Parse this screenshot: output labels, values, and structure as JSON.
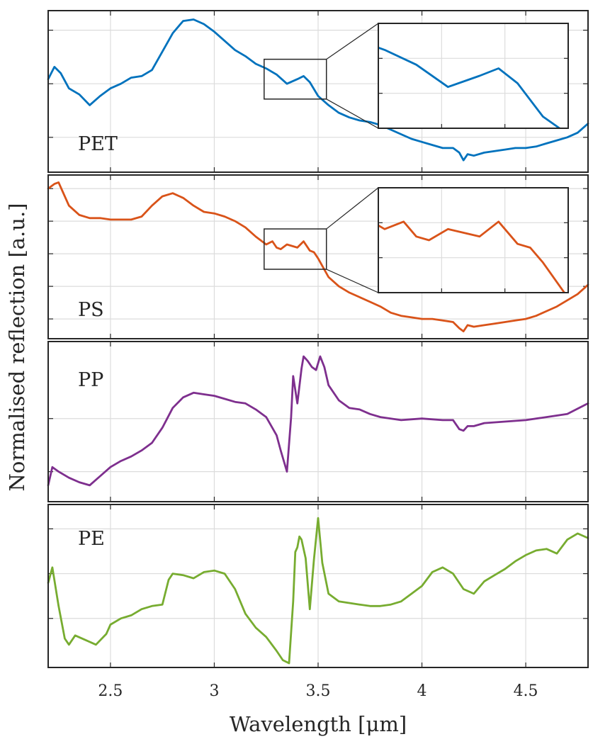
{
  "chart_data": {
    "type": "line",
    "xlabel": "Wavelength [μm]",
    "ylabel": "Normalised reflection [a.u.]",
    "xlim": [
      2.2,
      4.8
    ],
    "x_ticks": [
      "2.5",
      "3",
      "3.5",
      "4",
      "4.5"
    ],
    "x_tick_values": [
      2.5,
      3.0,
      3.5,
      4.0,
      4.5
    ],
    "grid": true,
    "panels": [
      {
        "name": "PET",
        "color": "#0072BD",
        "ylim": [
          0,
          1
        ],
        "y_tick_values": [
          0.2,
          0.55,
          0.9
        ],
        "x": [
          2.2,
          2.23,
          2.26,
          2.3,
          2.35,
          2.4,
          2.45,
          2.5,
          2.55,
          2.6,
          2.65,
          2.7,
          2.75,
          2.8,
          2.85,
          2.9,
          2.95,
          3.0,
          3.05,
          3.1,
          3.15,
          3.2,
          3.25,
          3.3,
          3.35,
          3.4,
          3.43,
          3.46,
          3.5,
          3.55,
          3.6,
          3.65,
          3.7,
          3.75,
          3.8,
          3.85,
          3.9,
          3.95,
          4.0,
          4.05,
          4.1,
          4.15,
          4.18,
          4.2,
          4.22,
          4.25,
          4.3,
          4.35,
          4.4,
          4.45,
          4.5,
          4.55,
          4.6,
          4.65,
          4.7,
          4.75,
          4.8
        ],
        "y": [
          0.58,
          0.66,
          0.62,
          0.52,
          0.48,
          0.41,
          0.47,
          0.52,
          0.55,
          0.59,
          0.6,
          0.64,
          0.76,
          0.88,
          0.96,
          0.97,
          0.94,
          0.89,
          0.83,
          0.77,
          0.73,
          0.68,
          0.65,
          0.61,
          0.55,
          0.58,
          0.6,
          0.56,
          0.47,
          0.41,
          0.36,
          0.33,
          0.31,
          0.3,
          0.28,
          0.25,
          0.22,
          0.19,
          0.17,
          0.15,
          0.13,
          0.13,
          0.1,
          0.05,
          0.09,
          0.08,
          0.1,
          0.11,
          0.12,
          0.13,
          0.13,
          0.14,
          0.16,
          0.18,
          0.2,
          0.23,
          0.29
        ],
        "inset_range": {
          "x": [
            3.24,
            3.54
          ],
          "y": [
            0.45,
            0.71
          ]
        }
      },
      {
        "name": "PS",
        "color": "#D95319",
        "ylim": [
          0,
          1
        ],
        "y_tick_values": [
          0.1,
          0.31,
          0.52,
          0.73,
          0.94
        ],
        "x": [
          2.2,
          2.23,
          2.25,
          2.27,
          2.3,
          2.35,
          2.4,
          2.45,
          2.5,
          2.55,
          2.6,
          2.65,
          2.7,
          2.75,
          2.8,
          2.85,
          2.9,
          2.95,
          3.0,
          3.05,
          3.1,
          3.15,
          3.2,
          3.25,
          3.28,
          3.3,
          3.32,
          3.35,
          3.4,
          3.43,
          3.46,
          3.48,
          3.5,
          3.55,
          3.6,
          3.65,
          3.7,
          3.75,
          3.8,
          3.85,
          3.9,
          3.95,
          4.0,
          4.05,
          4.1,
          4.15,
          4.18,
          4.2,
          4.22,
          4.25,
          4.3,
          4.35,
          4.4,
          4.45,
          4.5,
          4.55,
          4.6,
          4.65,
          4.7,
          4.75,
          4.8
        ],
        "y": [
          0.94,
          0.97,
          0.98,
          0.92,
          0.83,
          0.77,
          0.75,
          0.75,
          0.74,
          0.74,
          0.74,
          0.76,
          0.83,
          0.89,
          0.91,
          0.88,
          0.83,
          0.79,
          0.78,
          0.76,
          0.73,
          0.69,
          0.63,
          0.58,
          0.6,
          0.56,
          0.55,
          0.58,
          0.56,
          0.6,
          0.54,
          0.53,
          0.49,
          0.37,
          0.31,
          0.27,
          0.24,
          0.21,
          0.18,
          0.14,
          0.12,
          0.11,
          0.1,
          0.1,
          0.09,
          0.08,
          0.04,
          0.02,
          0.06,
          0.05,
          0.06,
          0.07,
          0.08,
          0.09,
          0.1,
          0.12,
          0.15,
          0.18,
          0.22,
          0.26,
          0.32
        ],
        "inset_range": {
          "x": [
            3.24,
            3.54
          ],
          "y": [
            0.42,
            0.68
          ]
        }
      },
      {
        "name": "PP",
        "color": "#7E2F8E",
        "ylim": [
          0,
          1
        ],
        "y_tick_values": [
          0.17,
          0.52
        ],
        "x": [
          2.2,
          2.22,
          2.25,
          2.3,
          2.35,
          2.4,
          2.45,
          2.5,
          2.55,
          2.6,
          2.65,
          2.7,
          2.75,
          2.8,
          2.85,
          2.9,
          2.95,
          3.0,
          3.05,
          3.1,
          3.15,
          3.2,
          3.25,
          3.3,
          3.32,
          3.35,
          3.37,
          3.38,
          3.4,
          3.42,
          3.43,
          3.45,
          3.47,
          3.49,
          3.51,
          3.53,
          3.55,
          3.6,
          3.65,
          3.7,
          3.75,
          3.8,
          3.9,
          4.0,
          4.1,
          4.15,
          4.18,
          4.2,
          4.22,
          4.25,
          4.3,
          4.4,
          4.5,
          4.6,
          4.7,
          4.8
        ],
        "y": [
          0.08,
          0.2,
          0.17,
          0.13,
          0.1,
          0.08,
          0.14,
          0.2,
          0.24,
          0.27,
          0.31,
          0.36,
          0.46,
          0.59,
          0.66,
          0.69,
          0.68,
          0.67,
          0.65,
          0.63,
          0.62,
          0.58,
          0.53,
          0.41,
          0.31,
          0.17,
          0.53,
          0.8,
          0.62,
          0.85,
          0.93,
          0.9,
          0.86,
          0.84,
          0.93,
          0.86,
          0.74,
          0.64,
          0.59,
          0.58,
          0.55,
          0.53,
          0.51,
          0.52,
          0.51,
          0.51,
          0.45,
          0.44,
          0.47,
          0.47,
          0.49,
          0.5,
          0.51,
          0.53,
          0.55,
          0.62
        ]
      },
      {
        "name": "PE",
        "color": "#77AC30",
        "ylim": [
          0,
          1
        ],
        "y_tick_values": [
          0.29,
          0.58,
          0.87
        ],
        "x": [
          2.2,
          2.22,
          2.25,
          2.28,
          2.3,
          2.33,
          2.38,
          2.43,
          2.48,
          2.5,
          2.55,
          2.6,
          2.65,
          2.7,
          2.75,
          2.78,
          2.8,
          2.85,
          2.9,
          2.95,
          3.0,
          3.05,
          3.1,
          3.15,
          3.2,
          3.25,
          3.3,
          3.33,
          3.36,
          3.38,
          3.39,
          3.4,
          3.41,
          3.42,
          3.44,
          3.46,
          3.48,
          3.5,
          3.52,
          3.55,
          3.6,
          3.65,
          3.7,
          3.75,
          3.8,
          3.85,
          3.9,
          3.95,
          4.0,
          4.05,
          4.1,
          4.15,
          4.2,
          4.25,
          4.3,
          4.35,
          4.4,
          4.45,
          4.5,
          4.55,
          4.6,
          4.65,
          4.7,
          4.75,
          4.8
        ],
        "y": [
          0.52,
          0.62,
          0.37,
          0.16,
          0.12,
          0.18,
          0.15,
          0.12,
          0.19,
          0.25,
          0.29,
          0.31,
          0.35,
          0.37,
          0.38,
          0.54,
          0.58,
          0.57,
          0.55,
          0.59,
          0.6,
          0.58,
          0.48,
          0.32,
          0.23,
          0.17,
          0.08,
          0.02,
          0.0,
          0.4,
          0.72,
          0.75,
          0.82,
          0.8,
          0.68,
          0.35,
          0.67,
          0.94,
          0.65,
          0.45,
          0.4,
          0.39,
          0.38,
          0.37,
          0.37,
          0.38,
          0.4,
          0.45,
          0.5,
          0.59,
          0.62,
          0.58,
          0.48,
          0.45,
          0.53,
          0.57,
          0.61,
          0.66,
          0.7,
          0.73,
          0.74,
          0.71,
          0.8,
          0.84,
          0.81
        ]
      }
    ]
  }
}
